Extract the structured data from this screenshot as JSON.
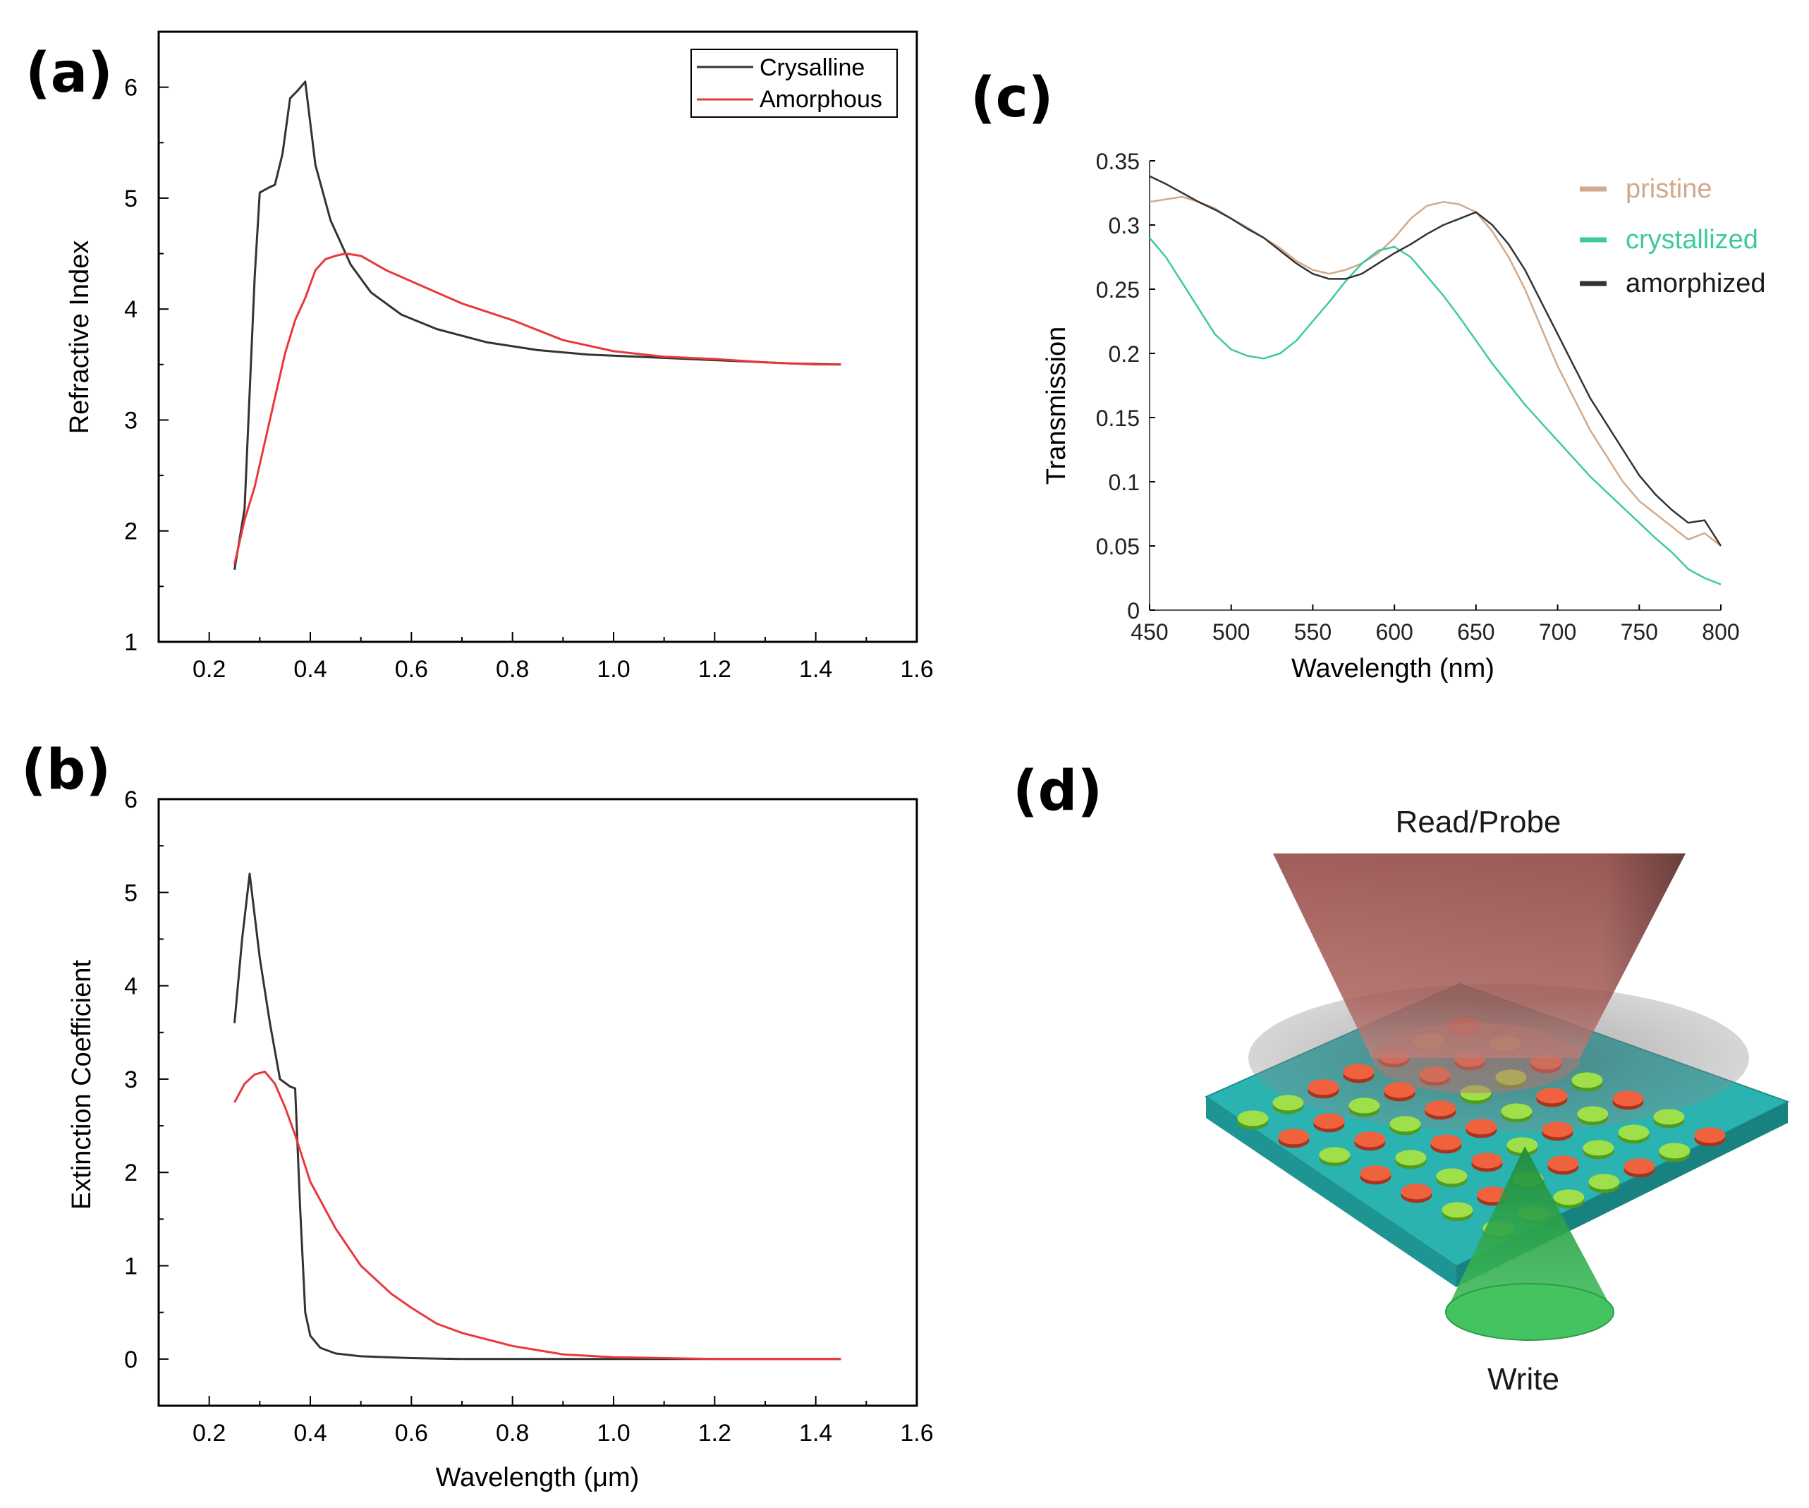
{
  "panels": {
    "a": "(a)",
    "b": "(b)",
    "c": "(c)",
    "d": "(d)"
  },
  "colors": {
    "crystalline": "#333333",
    "amorphous": "#e8383d",
    "pristine": "#d2a98a",
    "crystallized": "#3ec9a0",
    "amorphized": "#333333"
  },
  "chart_data": [
    {
      "id": "a",
      "type": "line",
      "xlabel": "",
      "ylabel": "Refractive Index",
      "xlim": [
        0.1,
        1.6
      ],
      "ylim": [
        1,
        6.5
      ],
      "xticks": [
        "0.2",
        "0.4",
        "0.6",
        "0.8",
        "1.0",
        "1.2",
        "1.4",
        "1.6"
      ],
      "yticks": [
        "1",
        "2",
        "3",
        "4",
        "5",
        "6"
      ],
      "legend": "top-right",
      "series": [
        {
          "name": "Crysalline",
          "color": "#333333",
          "x": [
            0.25,
            0.27,
            0.29,
            0.3,
            0.32,
            0.33,
            0.345,
            0.36,
            0.375,
            0.39,
            0.41,
            0.44,
            0.48,
            0.52,
            0.58,
            0.65,
            0.75,
            0.85,
            0.95,
            1.05,
            1.15,
            1.25,
            1.35,
            1.45
          ],
          "y": [
            1.65,
            2.2,
            4.3,
            5.05,
            5.1,
            5.12,
            5.4,
            5.9,
            5.97,
            6.05,
            5.3,
            4.8,
            4.4,
            4.15,
            3.95,
            3.82,
            3.7,
            3.63,
            3.59,
            3.57,
            3.55,
            3.53,
            3.51,
            3.5
          ]
        },
        {
          "name": "Amorphous",
          "color": "#e8383d",
          "x": [
            0.25,
            0.27,
            0.29,
            0.31,
            0.33,
            0.35,
            0.37,
            0.39,
            0.41,
            0.43,
            0.45,
            0.47,
            0.5,
            0.55,
            0.6,
            0.7,
            0.8,
            0.9,
            1.0,
            1.1,
            1.2,
            1.3,
            1.4,
            1.45
          ],
          "y": [
            1.7,
            2.1,
            2.4,
            2.8,
            3.2,
            3.6,
            3.9,
            4.1,
            4.35,
            4.45,
            4.48,
            4.5,
            4.48,
            4.35,
            4.25,
            4.05,
            3.9,
            3.72,
            3.62,
            3.57,
            3.55,
            3.52,
            3.5,
            3.5
          ]
        }
      ]
    },
    {
      "id": "b",
      "type": "line",
      "xlabel": "Wavelength (μm)",
      "ylabel": "Extinction Coefficient",
      "xlim": [
        0.1,
        1.6
      ],
      "ylim": [
        -0.5,
        6
      ],
      "xticks": [
        "0.2",
        "0.4",
        "0.6",
        "0.8",
        "1.0",
        "1.2",
        "1.4",
        "1.6"
      ],
      "yticks": [
        "0",
        "1",
        "2",
        "3",
        "4",
        "5",
        "6"
      ],
      "series": [
        {
          "name": "Crysalline",
          "color": "#333333",
          "x": [
            0.25,
            0.265,
            0.28,
            0.3,
            0.32,
            0.34,
            0.36,
            0.37,
            0.38,
            0.39,
            0.4,
            0.42,
            0.45,
            0.5,
            0.6,
            0.7,
            0.8,
            1.0,
            1.2,
            1.45
          ],
          "y": [
            3.6,
            4.5,
            5.2,
            4.3,
            3.6,
            3.0,
            2.92,
            2.9,
            1.6,
            0.5,
            0.25,
            0.12,
            0.06,
            0.03,
            0.01,
            0.0,
            0.0,
            0.0,
            0.0,
            0.0
          ]
        },
        {
          "name": "Amorphous",
          "color": "#e8383d",
          "x": [
            0.25,
            0.27,
            0.29,
            0.31,
            0.33,
            0.35,
            0.37,
            0.4,
            0.45,
            0.5,
            0.56,
            0.6,
            0.65,
            0.7,
            0.8,
            0.9,
            1.0,
            1.2,
            1.45
          ],
          "y": [
            2.75,
            2.95,
            3.05,
            3.08,
            2.95,
            2.7,
            2.4,
            1.9,
            1.4,
            1.0,
            0.7,
            0.55,
            0.38,
            0.28,
            0.14,
            0.05,
            0.02,
            0.0,
            0.0
          ]
        }
      ]
    },
    {
      "id": "c",
      "type": "line",
      "xlabel": "Wavelength (nm)",
      "ylabel": "Transmission",
      "xlim": [
        450,
        800
      ],
      "ylim": [
        0,
        0.35
      ],
      "xticks": [
        "450",
        "500",
        "550",
        "600",
        "650",
        "700",
        "750",
        "800"
      ],
      "yticks": [
        "0",
        "0.05",
        "0.1",
        "0.15",
        "0.2",
        "0.25",
        "0.3",
        "0.35"
      ],
      "legend": "top-right",
      "series": [
        {
          "name": "pristine",
          "color": "#d2a98a",
          "x": [
            450,
            460,
            470,
            480,
            490,
            500,
            510,
            520,
            530,
            540,
            550,
            560,
            570,
            580,
            590,
            600,
            610,
            620,
            630,
            640,
            650,
            660,
            670,
            680,
            690,
            700,
            710,
            720,
            730,
            740,
            750,
            760,
            770,
            780,
            790,
            800
          ],
          "y": [
            0.318,
            0.32,
            0.322,
            0.318,
            0.313,
            0.305,
            0.298,
            0.29,
            0.282,
            0.272,
            0.265,
            0.262,
            0.265,
            0.27,
            0.278,
            0.29,
            0.305,
            0.315,
            0.318,
            0.316,
            0.31,
            0.295,
            0.275,
            0.25,
            0.22,
            0.19,
            0.165,
            0.14,
            0.12,
            0.1,
            0.085,
            0.075,
            0.065,
            0.055,
            0.06,
            0.05
          ]
        },
        {
          "name": "crystallized",
          "color": "#3ec9a0",
          "x": [
            450,
            460,
            470,
            480,
            490,
            500,
            510,
            520,
            530,
            540,
            550,
            560,
            570,
            580,
            590,
            600,
            610,
            620,
            630,
            640,
            650,
            660,
            670,
            680,
            690,
            700,
            710,
            720,
            730,
            740,
            750,
            760,
            770,
            780,
            790,
            800
          ],
          "y": [
            0.29,
            0.275,
            0.255,
            0.235,
            0.215,
            0.203,
            0.198,
            0.196,
            0.2,
            0.21,
            0.225,
            0.24,
            0.256,
            0.27,
            0.28,
            0.283,
            0.275,
            0.26,
            0.245,
            0.228,
            0.21,
            0.192,
            0.176,
            0.16,
            0.146,
            0.132,
            0.118,
            0.104,
            0.092,
            0.08,
            0.068,
            0.056,
            0.045,
            0.032,
            0.025,
            0.02
          ]
        },
        {
          "name": "amorphized",
          "color": "#333333",
          "x": [
            450,
            460,
            470,
            480,
            490,
            500,
            510,
            520,
            530,
            540,
            550,
            560,
            570,
            580,
            590,
            600,
            610,
            620,
            630,
            640,
            650,
            660,
            670,
            680,
            690,
            700,
            710,
            720,
            730,
            740,
            750,
            760,
            770,
            780,
            790,
            800
          ],
          "y": [
            0.338,
            0.332,
            0.325,
            0.318,
            0.312,
            0.305,
            0.297,
            0.29,
            0.28,
            0.27,
            0.262,
            0.258,
            0.258,
            0.262,
            0.27,
            0.278,
            0.285,
            0.293,
            0.3,
            0.305,
            0.31,
            0.3,
            0.285,
            0.265,
            0.24,
            0.215,
            0.19,
            0.165,
            0.145,
            0.125,
            0.105,
            0.09,
            0.078,
            0.068,
            0.07,
            0.05
          ]
        }
      ]
    }
  ],
  "diagram": {
    "read_label": "Read/Probe",
    "write_label": "Write"
  }
}
